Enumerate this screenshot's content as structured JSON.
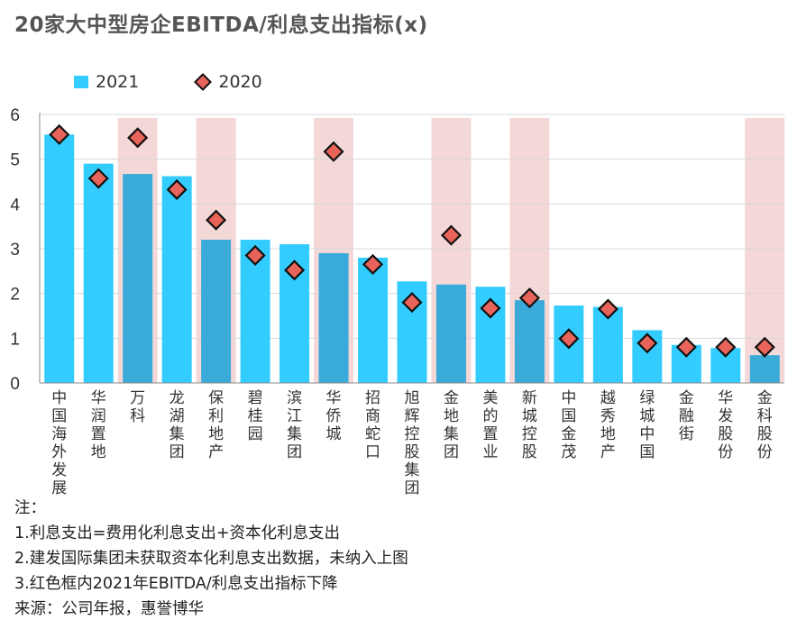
{
  "title": "20家大中型房企EBITDA/利息支出指标(x)",
  "legend": {
    "bar_label": "2021",
    "marker_label": "2020"
  },
  "colors": {
    "bar": "#33ccff",
    "bar_highlighted": "#3aaad8",
    "highlight_band": "#f4d8d8",
    "marker_fill": "#e8645a",
    "marker_stroke": "#111111"
  },
  "chart_data": {
    "type": "bar",
    "title": "20家大中型房企EBITDA/利息支出指标(x)",
    "categories": [
      "中国海外发展",
      "华润置地",
      "万科",
      "龙湖集团",
      "保利地产",
      "碧桂园",
      "滨江集团",
      "华侨城",
      "招商蛇口",
      "旭辉控股集团",
      "金地集团",
      "美的置业",
      "新城控股",
      "中国金茂",
      "越秀地产",
      "绿城中国",
      "金融街",
      "华发股份",
      "金科股份"
    ],
    "series": [
      {
        "name": "2021",
        "type": "bar",
        "values": [
          5.55,
          4.9,
          4.67,
          4.62,
          3.2,
          3.2,
          3.1,
          2.9,
          2.8,
          2.27,
          2.2,
          2.15,
          1.85,
          1.73,
          1.7,
          1.18,
          0.85,
          0.78,
          0.62
        ]
      },
      {
        "name": "2020",
        "type": "scatter",
        "values": [
          5.55,
          4.57,
          5.48,
          4.32,
          3.64,
          2.85,
          2.52,
          5.17,
          2.65,
          1.8,
          3.3,
          1.67,
          1.9,
          0.99,
          1.65,
          0.89,
          0.8,
          0.8,
          0.8
        ]
      }
    ],
    "highlighted": [
      "万科",
      "保利地产",
      "华侨城",
      "金地集团",
      "新城控股",
      "金科股份"
    ],
    "ylim": [
      0,
      6
    ],
    "yticks": [
      0,
      1,
      2,
      3,
      4,
      5,
      6
    ],
    "grid": true,
    "legend_position": "top-left"
  },
  "notes": {
    "heading": "注：",
    "lines": [
      "1.利息支出=费用化利息支出+资本化利息支出",
      "2.建发国际集团未获取资本化利息支出数据，未纳入上图",
      "3.红色框内2021年EBITDA/利息支出指标下降"
    ],
    "source": "来源：公司年报，惠誉博华"
  }
}
